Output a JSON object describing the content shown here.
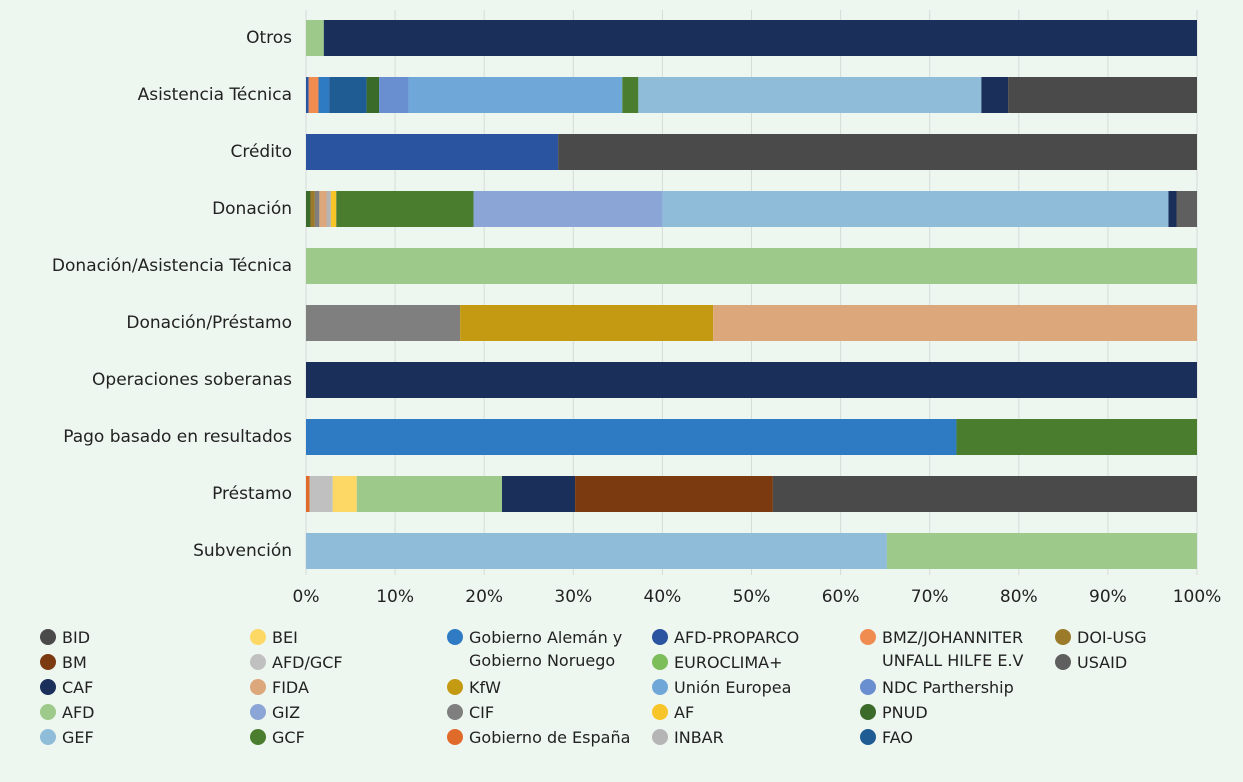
{
  "chart_data": {
    "type": "bar",
    "orientation": "horizontal",
    "stacked": true,
    "categories": [
      "Otros",
      "Asistencia Técnica",
      "Crédito",
      "Donación",
      "Donación/Asistencia Técnica",
      "Donación/Préstamo",
      "Operaciones soberanas",
      "Pago basado en resultados",
      "Préstamo",
      "Subvención"
    ],
    "xlim": [
      0,
      100
    ],
    "xticks": [
      {
        "value": 0,
        "label": "0%"
      },
      {
        "value": 10,
        "label": "10%"
      },
      {
        "value": 20,
        "label": "20%"
      },
      {
        "value": 30,
        "label": "30%"
      },
      {
        "value": 40,
        "label": "40%"
      },
      {
        "value": 50,
        "label": "50%"
      },
      {
        "value": 60,
        "label": "60%"
      },
      {
        "value": 70,
        "label": "70%"
      },
      {
        "value": 80,
        "label": "80%"
      },
      {
        "value": 90,
        "label": "90%"
      },
      {
        "value": 100,
        "label": "100%"
      }
    ],
    "grid": true,
    "series": [
      {
        "name": "Gobierno de España",
        "color": "#e06a2a",
        "values": [
          0,
          0,
          0,
          0,
          0,
          0,
          0,
          0,
          0.4,
          0
        ]
      },
      {
        "name": "AFD-PROPARCO",
        "color": "#2a54a0",
        "values": [
          0,
          0.3,
          28.3,
          0,
          0,
          0,
          0,
          0,
          0,
          0
        ]
      },
      {
        "name": "BMZ/JOHANNITER UNFALL HILFE E.V",
        "color": "#f08c50",
        "values": [
          0,
          1.1,
          0,
          0,
          0,
          0,
          0,
          0,
          0,
          0
        ]
      },
      {
        "name": "Gobierno Alemán y Gobierno Noruego",
        "color": "#2e7bc4",
        "values": [
          0,
          1.2,
          0,
          0,
          0,
          0,
          0,
          73,
          0,
          0
        ]
      },
      {
        "name": "FAO",
        "color": "#1f5c94",
        "values": [
          0,
          4.2,
          0,
          0,
          0,
          0,
          0,
          0,
          0,
          0
        ]
      },
      {
        "name": "PNUD",
        "color": "#3a6b2a",
        "values": [
          0,
          1.4,
          0,
          0.5,
          0,
          0,
          0,
          0,
          0,
          0
        ]
      },
      {
        "name": "NDC Parthership",
        "color": "#6a8fd0",
        "values": [
          0,
          3.3,
          0,
          0,
          0,
          0,
          0,
          0,
          0,
          0
        ]
      },
      {
        "name": "Unión Europea",
        "color": "#6fa8d8",
        "values": [
          0,
          24,
          0,
          0,
          0,
          0,
          0,
          0,
          0,
          0
        ]
      },
      {
        "name": "DOI-USG",
        "color": "#9b7a2a",
        "values": [
          0,
          0,
          0,
          0.5,
          0,
          0,
          0,
          0,
          0,
          0
        ]
      },
      {
        "name": "CIF",
        "color": "#7f7f7f",
        "values": [
          0,
          0,
          0,
          0.5,
          0,
          17.3,
          0,
          0,
          0,
          0
        ]
      },
      {
        "name": "KfW",
        "color": "#c39a12",
        "values": [
          0,
          0,
          0,
          0,
          0,
          28.4,
          0,
          0,
          0,
          0
        ]
      },
      {
        "name": "FIDA",
        "color": "#dba77b",
        "values": [
          0,
          0,
          0,
          0.8,
          0,
          54.3,
          0,
          0,
          0,
          0
        ]
      },
      {
        "name": "INBAR",
        "color": "#b5b5b5",
        "values": [
          0,
          0,
          0,
          0.5,
          0,
          0,
          0,
          0,
          0,
          0
        ]
      },
      {
        "name": "AF",
        "color": "#f7c52a",
        "values": [
          0,
          0,
          0,
          0.6,
          0,
          0,
          0,
          0,
          0,
          0
        ]
      },
      {
        "name": "AFD/GCF",
        "color": "#c0c0c0",
        "values": [
          0,
          0,
          0,
          0,
          0,
          0,
          0,
          0,
          2.6,
          0
        ]
      },
      {
        "name": "BEI",
        "color": "#fdd865",
        "values": [
          0,
          0,
          0,
          0,
          0,
          0,
          0,
          0,
          2.7,
          0
        ]
      },
      {
        "name": "GCF",
        "color": "#4b7d2e",
        "values": [
          0,
          1.8,
          0,
          15.4,
          0,
          0,
          0,
          27,
          0,
          0
        ]
      },
      {
        "name": "GIZ",
        "color": "#8ba6d6",
        "values": [
          0,
          0,
          0,
          21.2,
          0,
          0,
          0,
          0,
          0,
          0
        ]
      },
      {
        "name": "GEF",
        "color": "#8fbcd9",
        "values": [
          0,
          38.5,
          0,
          56.8,
          0,
          0,
          0,
          0,
          0,
          65.2
        ]
      },
      {
        "name": "AFD",
        "color": "#9dc98a",
        "values": [
          2,
          0,
          0,
          0,
          100,
          0,
          0,
          0,
          16.3,
          34.8
        ]
      },
      {
        "name": "CAF",
        "color": "#1a2f5a",
        "values": [
          98,
          3,
          0,
          0.9,
          0,
          0,
          100,
          0,
          8.2,
          0
        ]
      },
      {
        "name": "BM",
        "color": "#7b3a10",
        "values": [
          0,
          0,
          0,
          0,
          0,
          0,
          0,
          0,
          22.2,
          0
        ]
      },
      {
        "name": "USAID",
        "color": "#5f5f5f",
        "values": [
          0,
          0,
          0,
          2.3,
          0,
          0,
          0,
          0,
          0,
          0
        ]
      },
      {
        "name": "BID",
        "color": "#4a4a4a",
        "values": [
          0,
          21.2,
          71.7,
          0,
          0,
          0,
          0,
          0,
          47.6,
          0
        ]
      },
      {
        "name": "EUROCLIMA+",
        "color": "#7dbd5a",
        "values": [
          0,
          0,
          0,
          0,
          0,
          0,
          0,
          0,
          0,
          0
        ]
      }
    ]
  }
}
